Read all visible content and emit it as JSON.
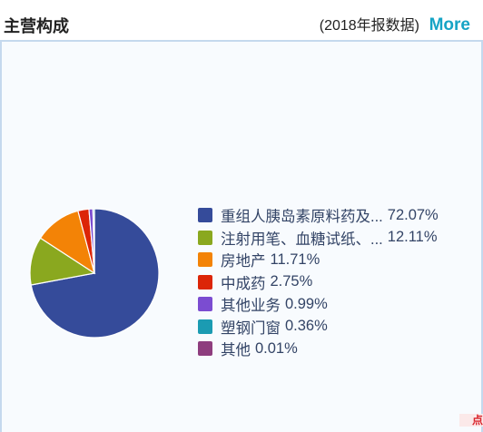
{
  "header": {
    "title": "主营构成",
    "report_note": "(2018年报数据)",
    "more_label": "More"
  },
  "corner_badge": "点",
  "colors": {
    "accent": "#16a4c5",
    "panel_border": "#c5d9ee",
    "panel_bg": "#f8fbfe"
  },
  "chart_data": {
    "type": "pie",
    "title": "",
    "legend_position": "right",
    "slices": [
      {
        "label": "重组人胰岛素原料药及...",
        "value": 72.07,
        "value_text": "72.07%",
        "color": "#354b9a"
      },
      {
        "label": "注射用笔、血糖试纸、...",
        "value": 12.11,
        "value_text": "12.11%",
        "color": "#8aa81f"
      },
      {
        "label": "房地产",
        "value": 11.71,
        "value_text": "11.71%",
        "color": "#f38306"
      },
      {
        "label": "中成药",
        "value": 2.75,
        "value_text": "2.75%",
        "color": "#dc2507"
      },
      {
        "label": "其他业务",
        "value": 0.99,
        "value_text": "0.99%",
        "color": "#7b4cd1"
      },
      {
        "label": "塑钢门窗",
        "value": 0.36,
        "value_text": "0.36%",
        "color": "#1b9bb2"
      },
      {
        "label": "其他",
        "value": 0.01,
        "value_text": "0.01%",
        "color": "#8e3d7e"
      }
    ]
  }
}
